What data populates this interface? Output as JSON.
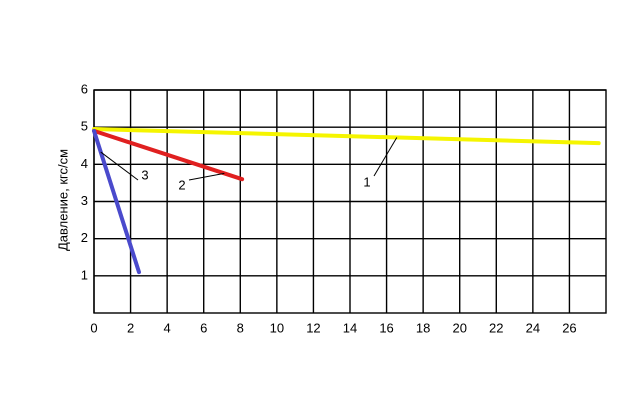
{
  "chart_data": {
    "type": "line",
    "y_label": "Давление, кгс/см",
    "xlim": [
      0,
      28
    ],
    "xticks": [
      0,
      2,
      4,
      6,
      8,
      10,
      12,
      14,
      16,
      18,
      20,
      22,
      24,
      26
    ],
    "ylim": [
      0,
      6
    ],
    "yticks": [
      1,
      2,
      3,
      4,
      5,
      6
    ],
    "grid": true,
    "series": [
      {
        "name": "1",
        "color": "#f5f500",
        "x": [
          0,
          27.6
        ],
        "values": [
          4.95,
          4.57
        ]
      },
      {
        "name": "2",
        "color": "#e02020",
        "x": [
          0,
          8.1
        ],
        "values": [
          4.9,
          3.6
        ]
      },
      {
        "name": "3",
        "color": "#4a4acc",
        "x": [
          0,
          2.46
        ],
        "values": [
          4.9,
          1.1
        ]
      }
    ]
  }
}
